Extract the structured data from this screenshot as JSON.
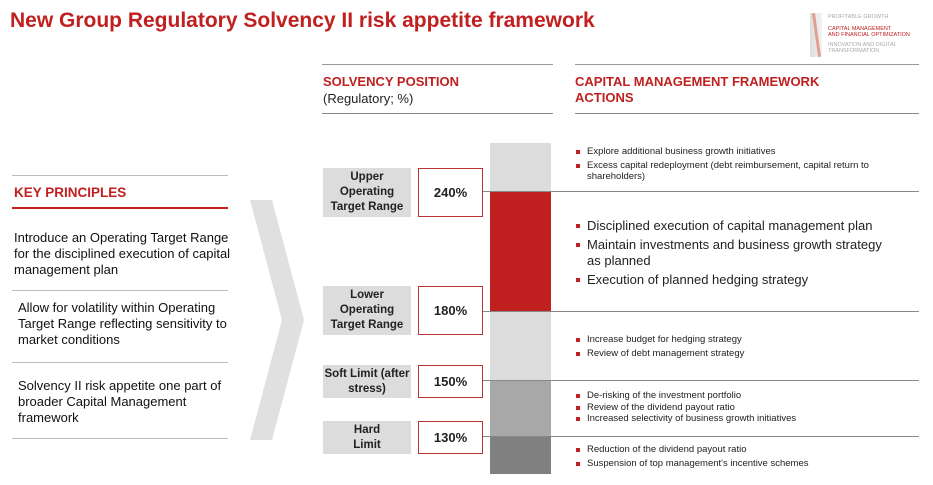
{
  "title": "New Group Regulatory Solvency II risk appetite framework",
  "logo": {
    "line1": "PROFITABLE GROWTH",
    "line2": "CAPITAL MANAGEMENT\nAND FINANCIAL OPTIMIZATION",
    "line3": "INNOVATION AND DIGITAL\nTRANSFORMATION"
  },
  "solvency": {
    "header": "SOLVENCY POSITION",
    "subheader": "(Regulatory; %)"
  },
  "actions_header": "CAPITAL MANAGEMENT FRAMEWORK ACTIONS",
  "key_principles": {
    "header": "KEY PRINCIPLES",
    "items": [
      "Introduce an Operating Target Range for the disciplined execution of capital management plan",
      "Allow for volatility within Operating Target Range reflecting sensitivity to market conditions",
      "Solvency II risk appetite one part of broader Capital Management framework"
    ]
  },
  "thresholds": [
    {
      "label": "Upper Operating Target Range",
      "value": "240%"
    },
    {
      "label": "Lower Operating Target Range",
      "value": "180%"
    },
    {
      "label": "Soft Limit (after stress)",
      "value": "150%"
    },
    {
      "label": "Hard Limit",
      "value": "130%"
    }
  ],
  "colors": {
    "accent": "#c0201f",
    "zone_above": "#dcdcdc",
    "zone_target": "#c0201f",
    "zone_soft": "#dcdcdc",
    "zone_hard": "#a8a8a8",
    "zone_below": "#808080"
  },
  "actions": [
    [
      "Explore additional business growth initiatives",
      "Excess capital redeployment (debt reimbursement, capital return to shareholders)"
    ],
    [
      "Disciplined execution of capital management plan",
      "Maintain investments and business growth strategy as planned",
      "Execution of planned hedging strategy"
    ],
    [
      "Increase budget for hedging strategy",
      "Review of debt management strategy"
    ],
    [
      "De-risking of the investment portfolio",
      "Review of the dividend payout ratio",
      "Increased selectivity of business growth initiatives"
    ],
    [
      "Reduction of the dividend payout ratio",
      "Suspension of top management's incentive schemes"
    ]
  ]
}
